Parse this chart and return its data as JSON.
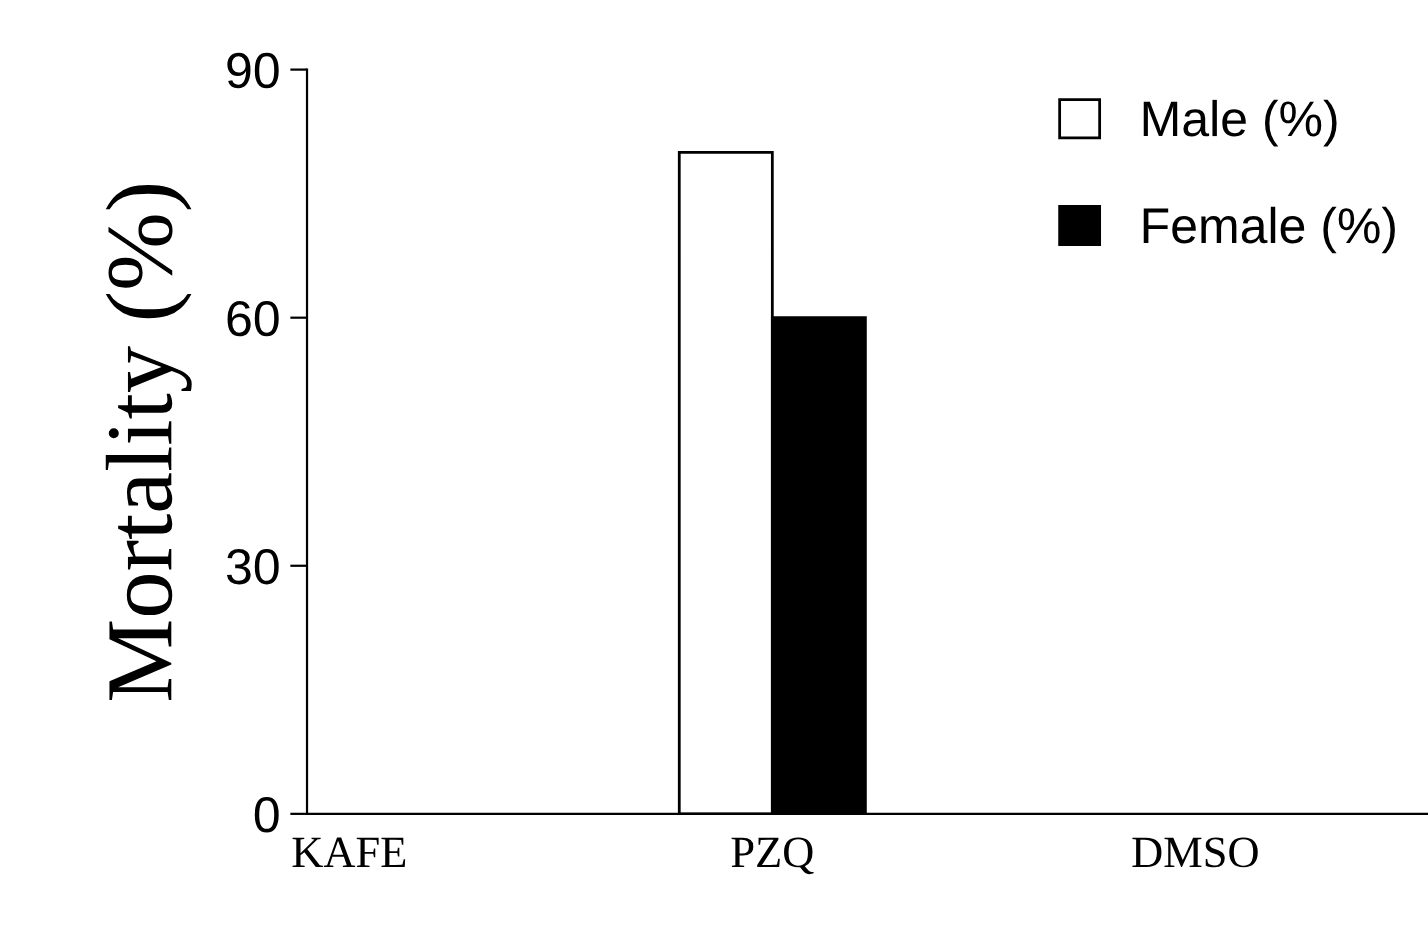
{
  "chart_data": {
    "type": "bar",
    "ylabel": "Mortality (%)",
    "categories": [
      "KAFE",
      "PZQ",
      "DMSO"
    ],
    "series": [
      {
        "name": "Male (%)",
        "color": "#ffffff",
        "values": [
          0,
          80,
          0
        ]
      },
      {
        "name": "Female (%)",
        "color": "#000000",
        "values": [
          0,
          60,
          0
        ]
      }
    ],
    "ylim": [
      0,
      90
    ],
    "yticks": [
      0,
      30,
      60,
      90
    ],
    "grid": false,
    "legend": "top right"
  }
}
